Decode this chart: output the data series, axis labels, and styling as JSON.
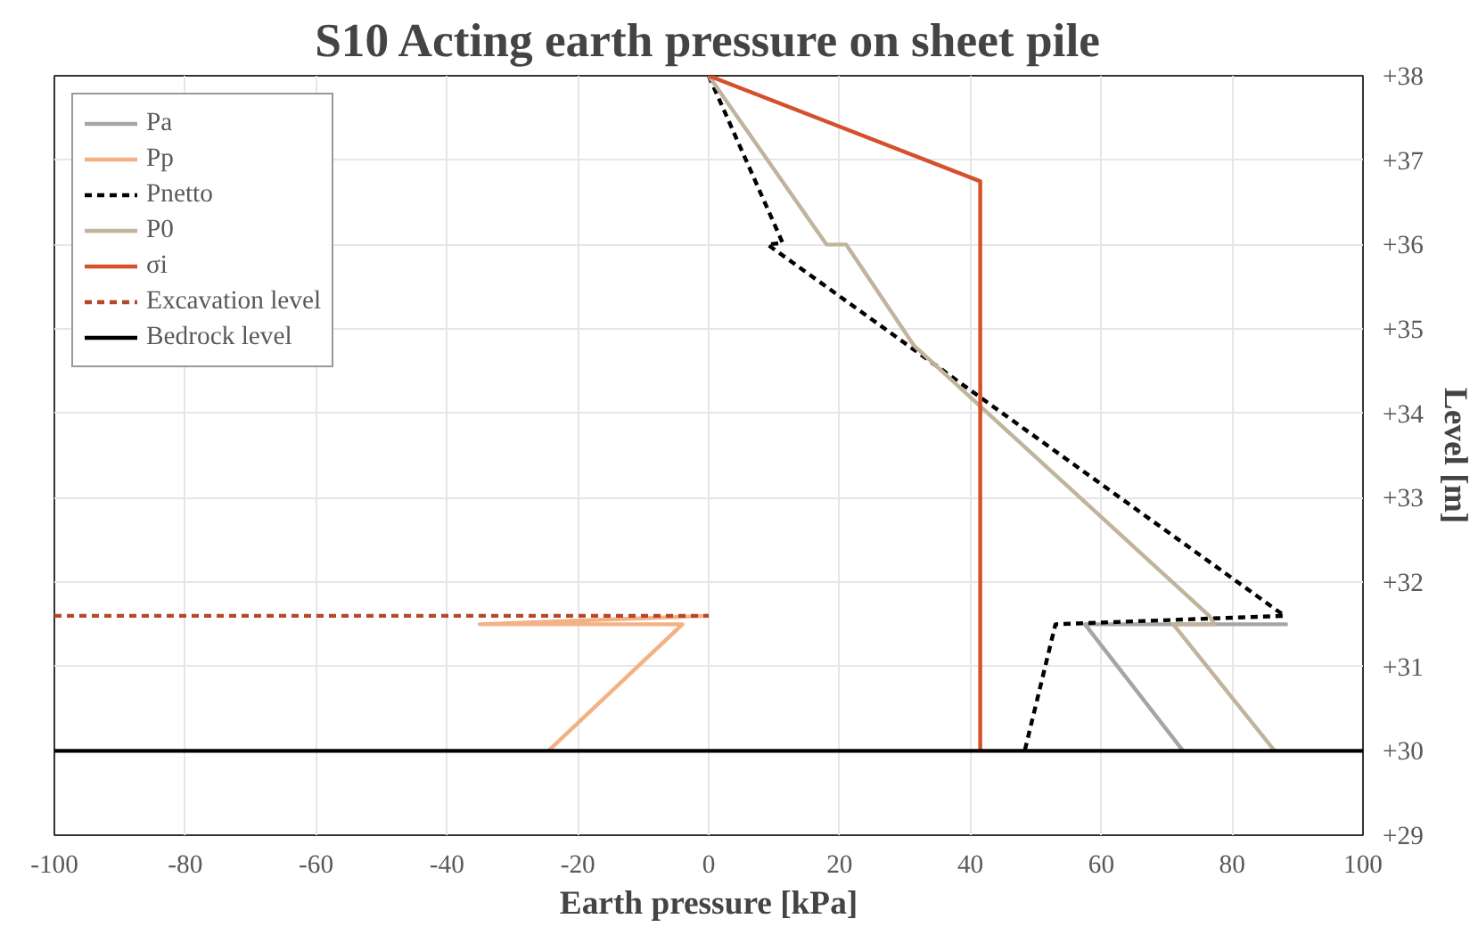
{
  "chart_data": {
    "type": "line",
    "title": "S10 Acting earth pressure on sheet pile",
    "xlabel": "Earth pressure [kPa]",
    "ylabel": "Level [m]",
    "xlim": [
      -100,
      100
    ],
    "xticks": [
      -100,
      -80,
      -60,
      -40,
      -20,
      0,
      20,
      40,
      60,
      80,
      100
    ],
    "ylim": [
      29,
      38
    ],
    "yticks": [
      {
        "value": 29,
        "label": "+29"
      },
      {
        "value": 30,
        "label": "+30"
      },
      {
        "value": 31,
        "label": "+31"
      },
      {
        "value": 32,
        "label": "+32"
      },
      {
        "value": 33,
        "label": "+33"
      },
      {
        "value": 34,
        "label": "+34"
      },
      {
        "value": 35,
        "label": "+35"
      },
      {
        "value": 36,
        "label": "+36"
      },
      {
        "value": 37,
        "label": "+37"
      },
      {
        "value": 38,
        "label": "+38"
      }
    ],
    "grid": true,
    "legend": "top left",
    "marker": "none",
    "series": [
      {
        "name": "Pa",
        "color": "#a5a5a5",
        "line_style": "solid",
        "x": [
          88.5,
          57.5,
          72.5
        ],
        "values": [
          31.5,
          31.5,
          30
        ]
      },
      {
        "name": "Pp",
        "color": "#f4b183",
        "line_style": "solid",
        "x": [
          0,
          -35,
          -4,
          -24.5
        ],
        "values": [
          31.6,
          31.5,
          31.5,
          30
        ]
      },
      {
        "name": "Pnetto",
        "color": "#000000",
        "line_style": "dashed",
        "x": [
          0,
          11.3,
          9,
          88,
          53,
          48.3
        ],
        "values": [
          38,
          36.02,
          36,
          31.6,
          31.5,
          30
        ]
      },
      {
        "name": "P0",
        "color": "#c0b49c",
        "line_style": "solid",
        "x": [
          0,
          18,
          21,
          31.4,
          76.5,
          77.3,
          71,
          86.5
        ],
        "values": [
          38,
          36,
          36,
          34.8,
          31.6,
          31.5,
          31.5,
          30
        ]
      },
      {
        "name": "σi",
        "color": "#d4512a",
        "line_style": "solid",
        "x": [
          0,
          41.5,
          41.5
        ],
        "values": [
          38,
          36.75,
          30
        ]
      },
      {
        "name": "Excavation level",
        "color": "#b5472a",
        "line_style": "dashed",
        "x": [
          -100,
          0
        ],
        "values": [
          31.6,
          31.6
        ]
      },
      {
        "name": "Bedrock level",
        "color": "#000000",
        "line_style": "solid",
        "x": [
          -100,
          100
        ],
        "values": [
          30,
          30
        ]
      }
    ]
  }
}
